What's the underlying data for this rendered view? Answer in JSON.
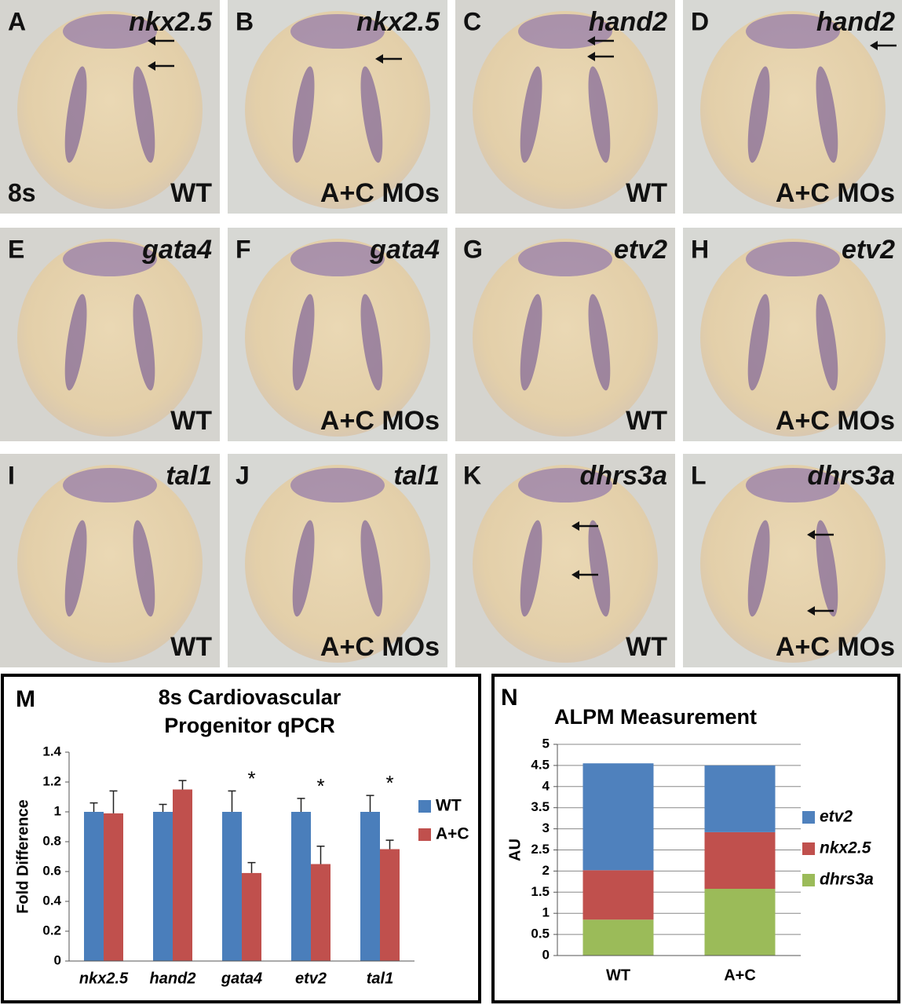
{
  "panels": [
    {
      "letter": "A",
      "gene": "nkx2.5",
      "condition": "WT",
      "stage": "8s"
    },
    {
      "letter": "B",
      "gene": "nkx2.5",
      "condition": "A+C MOs"
    },
    {
      "letter": "C",
      "gene": "hand2",
      "condition": "WT"
    },
    {
      "letter": "D",
      "gene": "hand2",
      "condition": "A+C MOs"
    },
    {
      "letter": "E",
      "gene": "gata4",
      "condition": "WT"
    },
    {
      "letter": "F",
      "gene": "gata4",
      "condition": "A+C MOs"
    },
    {
      "letter": "G",
      "gene": "etv2",
      "condition": "WT"
    },
    {
      "letter": "H",
      "gene": "etv2",
      "condition": "A+C MOs"
    },
    {
      "letter": "I",
      "gene": "tal1",
      "condition": "WT"
    },
    {
      "letter": "J",
      "gene": "tal1",
      "condition": "A+C MOs"
    },
    {
      "letter": "K",
      "gene": "dhrs3a",
      "condition": "WT"
    },
    {
      "letter": "L",
      "gene": "dhrs3a",
      "condition": "A+C MOs"
    }
  ],
  "chart_data": [
    {
      "type": "bar",
      "panel_label": "M",
      "title": [
        "8s Cardiovascular",
        "Progenitor qPCR"
      ],
      "ylabel": "Fold Difference",
      "categories": [
        "nkx2.5",
        "hand2",
        "gata4",
        "etv2",
        "tal1"
      ],
      "series": [
        {
          "name": "WT",
          "color": "#4a7ebb",
          "values": [
            1,
            1,
            1,
            1,
            1
          ],
          "errors": [
            0.06,
            0.05,
            0.14,
            0.09,
            0.11
          ]
        },
        {
          "name": "A+C",
          "color": "#c0504d",
          "values": [
            0.99,
            1.15,
            0.59,
            0.65,
            0.75
          ],
          "errors": [
            0.15,
            0.06,
            0.07,
            0.12,
            0.06
          ]
        }
      ],
      "significance": [
        null,
        null,
        "*",
        "*",
        "*"
      ],
      "ylim": [
        0,
        1.4
      ],
      "yticks": [
        0,
        0.2,
        0.4,
        0.6,
        0.8,
        1,
        1.2,
        1.4
      ],
      "grid": false,
      "stacked": false
    },
    {
      "type": "bar",
      "panel_label": "N",
      "title": [
        "ALPM Measurement"
      ],
      "ylabel": "AU",
      "categories": [
        "WT",
        "A+C"
      ],
      "series": [
        {
          "name": "dhrs3a",
          "color": "#9bbb59",
          "values": [
            0.85,
            1.58
          ]
        },
        {
          "name": "nkx2.5",
          "color": "#c0504d",
          "values": [
            1.17,
            1.34
          ]
        },
        {
          "name": "etv2",
          "color": "#4f81bd",
          "values": [
            2.53,
            1.58
          ]
        }
      ],
      "ylim": [
        0,
        5
      ],
      "yticks": [
        0,
        0.5,
        1,
        1.5,
        2,
        2.5,
        3,
        3.5,
        4,
        4.5,
        5
      ],
      "grid": true,
      "stacked": true
    }
  ]
}
